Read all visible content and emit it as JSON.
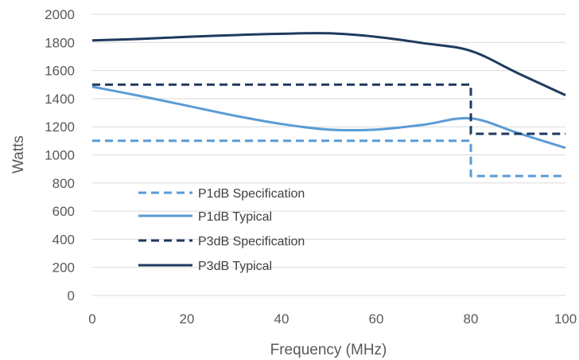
{
  "chart_data": {
    "type": "line",
    "xlabel": "Frequency (MHz)",
    "ylabel": "Watts",
    "xlim": [
      0,
      100
    ],
    "ylim": [
      0,
      2000
    ],
    "x_ticks": [
      "0",
      "20",
      "40",
      "60",
      "80",
      "100"
    ],
    "y_ticks": [
      "0",
      "200",
      "400",
      "600",
      "800",
      "1000",
      "1200",
      "1400",
      "1600",
      "1800",
      "2000"
    ],
    "grid": "horizontal",
    "legend_position": "lower-left",
    "series": [
      {
        "name": "P1dB Specification",
        "color": "#5b9bd5",
        "style": "dashed",
        "points": [
          [
            0,
            1100
          ],
          [
            80,
            1100
          ],
          [
            80,
            850
          ],
          [
            100,
            850
          ]
        ]
      },
      {
        "name": "P1dB Typical",
        "color": "#5b9bd5",
        "style": "solid",
        "points": [
          [
            0,
            1485
          ],
          [
            10,
            1420
          ],
          [
            20,
            1350
          ],
          [
            30,
            1280
          ],
          [
            40,
            1220
          ],
          [
            50,
            1180
          ],
          [
            60,
            1180
          ],
          [
            70,
            1215
          ],
          [
            80,
            1260
          ],
          [
            90,
            1155
          ],
          [
            100,
            1050
          ]
        ]
      },
      {
        "name": "P3dB Specification",
        "color": "#1f3a5f",
        "style": "dashed",
        "points": [
          [
            0,
            1500
          ],
          [
            80,
            1500
          ],
          [
            80,
            1150
          ],
          [
            100,
            1150
          ]
        ]
      },
      {
        "name": "P3dB Typical",
        "color": "#1f3a5f",
        "style": "solid",
        "points": [
          [
            0,
            1815
          ],
          [
            10,
            1825
          ],
          [
            20,
            1840
          ],
          [
            30,
            1852
          ],
          [
            40,
            1862
          ],
          [
            50,
            1865
          ],
          [
            60,
            1840
          ],
          [
            70,
            1795
          ],
          [
            80,
            1740
          ],
          [
            90,
            1580
          ],
          [
            100,
            1425
          ]
        ]
      }
    ]
  }
}
